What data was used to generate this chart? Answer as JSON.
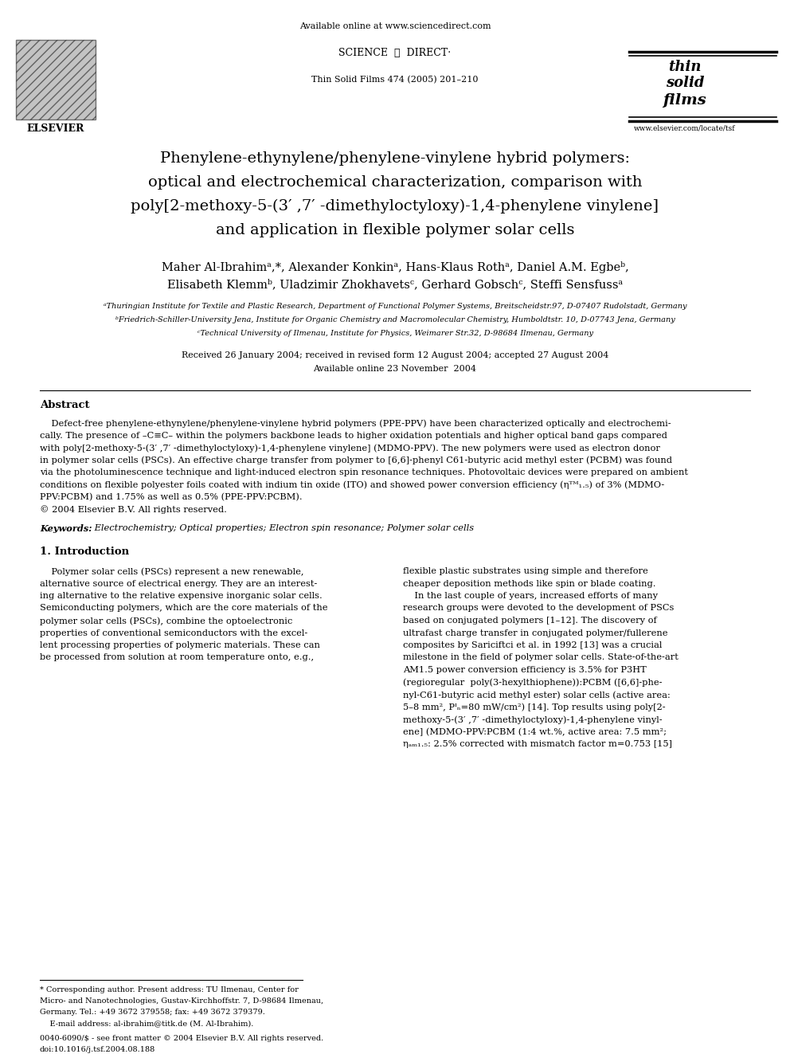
{
  "bg_color": "#ffffff",
  "page_width": 9.92,
  "page_height": 13.23,
  "header_available": "Available online at www.sciencedirect.com",
  "header_scidir": "SCIENCE   ⓓ   DIRECT·",
  "header_journal": "Thin Solid Films 474 (2005) 201–210",
  "header_elsevier": "ELSEVIER",
  "header_tsf_lines": [
    "thin",
    "solid",
    "films"
  ],
  "header_website": "www.elsevier.com/locate/tsf",
  "title_lines": [
    "Phenylene-ethynylene/phenylene-vinylene hybrid polymers:",
    "optical and electrochemical characterization, comparison with",
    "poly[2-methoxy-5-(3′ ,7′ -dimethyloctyloxy)-1,4-phenylene vinylene]",
    "and application in flexible polymer solar cells"
  ],
  "author_lines": [
    "Maher Al-Ibrahimᵃ,*, Alexander Konkinᵃ, Hans-Klaus Rothᵃ, Daniel A.M. Egbeᵇ,",
    "Elisabeth Klemmᵇ, Uladzimir Zhokhavetsᶜ, Gerhard Gobschᶜ, Steffi Sensfussᵃ"
  ],
  "affil_lines": [
    "ᵃThuringian Institute for Textile and Plastic Research, Department of Functional Polymer Systems, Breitscheidstr.97, D-07407 Rudolstadt, Germany",
    "ᵇFriedrich-Schiller-University Jena, Institute for Organic Chemistry and Macromolecular Chemistry, Humboldtstr. 10, D-07743 Jena, Germany",
    "ᶜTechnical University of Ilmenau, Institute for Physics, Weimarer Str.32, D-98684 Ilmenau, Germany"
  ],
  "received_lines": [
    "Received 26 January 2004; received in revised form 12 August 2004; accepted 27 August 2004",
    "Available online 23 November  2004"
  ],
  "abstract_title": "Abstract",
  "abstract_lines": [
    "    Defect-free phenylene-ethynylene/phenylene-vinylene hybrid polymers (PPE-PPV) have been characterized optically and electrochemi-",
    "cally. The presence of –C≡C– within the polymers backbone leads to higher oxidation potentials and higher optical band gaps compared",
    "with poly[2-methoxy-5-(3′ ,7′ -dimethyloctyloxy)-1,4-phenylene vinylene] (MDMO-PPV). The new polymers were used as electron donor",
    "in polymer solar cells (PSCs). An effective charge transfer from polymer to [6,6]-phenyl C61-butyric acid methyl ester (PCBM) was found",
    "via the photoluminescence technique and light-induced electron spin resonance techniques. Photovoltaic devices were prepared on ambient",
    "conditions on flexible polyester foils coated with indium tin oxide (ITO) and showed power conversion efficiency (ηᵀᴹ₁.₅) of 3% (MDMO-",
    "PPV:PCBM) and 1.75% as well as 0.5% (PPE-PPV:PCBM).",
    "© 2004 Elsevier B.V. All rights reserved."
  ],
  "keywords_label": "Keywords:",
  "keywords_text": " Electrochemistry; Optical properties; Electron spin resonance; Polymer solar cells",
  "sec1_title": "1. Introduction",
  "col1_lines": [
    "    Polymer solar cells (PSCs) represent a new renewable,",
    "alternative source of electrical energy. They are an interest-",
    "ing alternative to the relative expensive inorganic solar cells.",
    "Semiconducting polymers, which are the core materials of the",
    "polymer solar cells (PSCs), combine the optoelectronic",
    "properties of conventional semiconductors with the excel-",
    "lent processing properties of polymeric materials. These can",
    "be processed from solution at room temperature onto, e.g.,"
  ],
  "col2_lines": [
    "flexible plastic substrates using simple and therefore",
    "cheaper deposition methods like spin or blade coating.",
    "    In the last couple of years, increased efforts of many",
    "research groups were devoted to the development of PSCs",
    "based on conjugated polymers [1–12]. The discovery of",
    "ultrafast charge transfer in conjugated polymer/fullerene",
    "composites by Sariciftci et al. in 1992 [13] was a crucial",
    "milestone in the field of polymer solar cells. State-of-the-art",
    "AM1.5 power conversion efficiency is 3.5% for P3HT",
    "(regioregular  poly(3-hexylthiophene)):PCBM ([6,6]-phe-",
    "nyl-C61-butyric acid methyl ester) solar cells (active area:",
    "5–8 mm², Pᴵₙ=80 mW/cm²) [14]. Top results using poly[2-",
    "methoxy-5-(3′ ,7′ -dimethyloctyloxy)-1,4-phenylene vinyl-",
    "ene] (MDMO-PPV:PCBM (1:4 wt.%, active area: 7.5 mm²;",
    "ηₐₘ₁.₅: 2.5% corrected with mismatch factor m=0.753 [15]"
  ],
  "footnote_lines": [
    "* Corresponding author. Present address: TU Ilmenau, Center for",
    "Micro- and Nanotechnologies, Gustav-Kirchhoffstr. 7, D-98684 Ilmenau,",
    "Germany. Tel.: +49 3672 379558; fax: +49 3672 379379.",
    "    E-mail address: al-ibrahim@titk.de (M. Al-Ibrahim)."
  ],
  "footer_lines": [
    "0040-6090/$ - see front matter © 2004 Elsevier B.V. All rights reserved.",
    "doi:10.1016/j.tsf.2004.08.188"
  ]
}
